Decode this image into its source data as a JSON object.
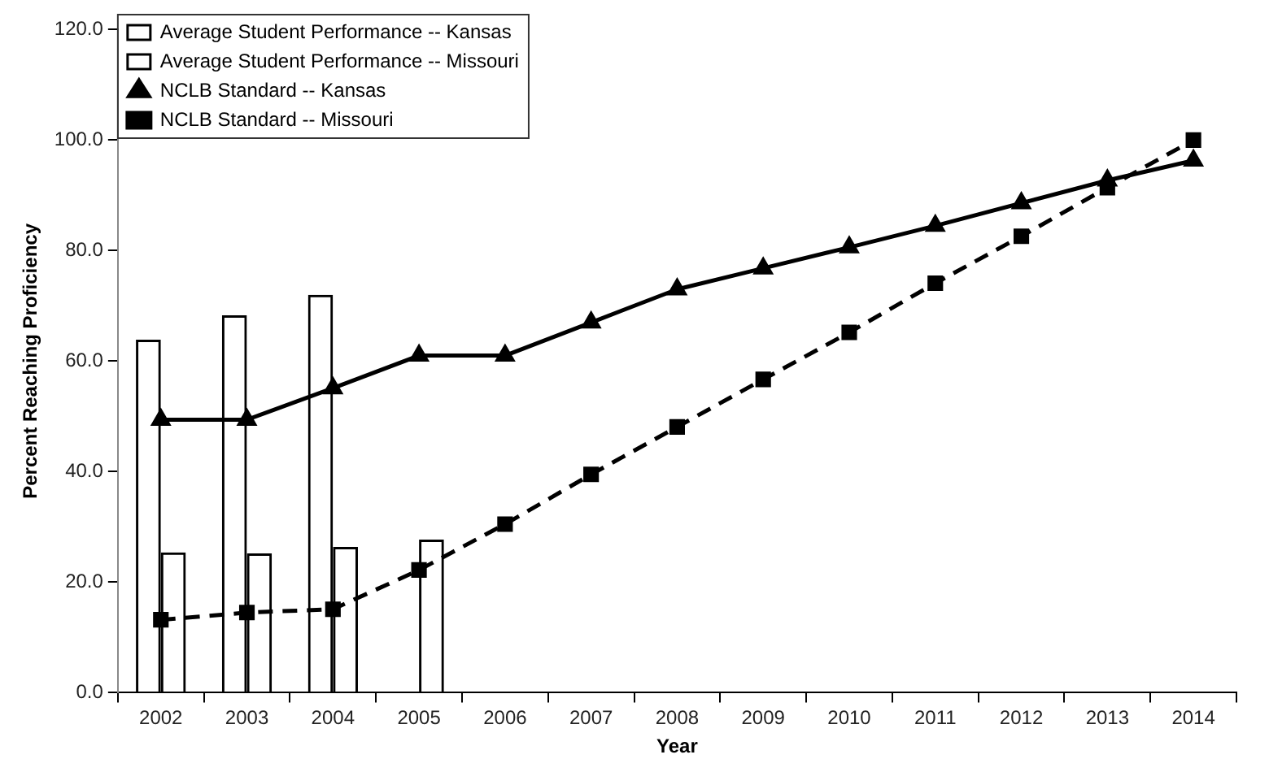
{
  "chart_data": {
    "type": "bar",
    "xlabel": "Year",
    "ylabel": "Percent Reaching Proficiency",
    "categories": [
      "2002",
      "2003",
      "2004",
      "2005",
      "2006",
      "2007",
      "2008",
      "2009",
      "2010",
      "2011",
      "2012",
      "2013",
      "2014"
    ],
    "series": [
      {
        "name": "Average Student Performance -- Kansas",
        "color": "#000000",
        "values": [
          63.9,
          68.3,
          72.0,
          null,
          null,
          null,
          null,
          null,
          null,
          null,
          null,
          null,
          null
        ]
      },
      {
        "name": "Average Student Performance -- Missouri",
        "color": "#000000",
        "values": [
          25.4,
          25.2,
          26.4,
          27.7,
          null,
          null,
          null,
          null,
          null,
          null,
          null,
          null,
          null
        ]
      },
      {
        "name": "NCLB Standard -- Kansas",
        "type": "line",
        "color": "#000000",
        "marker": "triangle",
        "line_style": "solid",
        "values": [
          49.4,
          49.4,
          55.1,
          61.0,
          61.0,
          67.0,
          73.0,
          76.8,
          80.6,
          84.5,
          88.6,
          92.7,
          96.3
        ]
      },
      {
        "name": "NCLB Standard -- Missouri",
        "type": "line",
        "color": "#000000",
        "marker": "square",
        "line_style": "dashed",
        "values": [
          13.2,
          14.5,
          15.1,
          22.2,
          30.5,
          39.5,
          48.1,
          56.7,
          65.2,
          74.1,
          82.6,
          91.4,
          100.0
        ]
      }
    ],
    "ylim": [
      0,
      120
    ],
    "yticks": [
      {
        "value": 0,
        "label": "0.0"
      },
      {
        "value": 20,
        "label": "20.0"
      },
      {
        "value": 40,
        "label": "40.0"
      },
      {
        "value": 60,
        "label": "60.0"
      },
      {
        "value": 80,
        "label": "80.0"
      },
      {
        "value": 100,
        "label": "100.0"
      },
      {
        "value": 120,
        "label": "120.0"
      }
    ],
    "grid": false,
    "legend": "top left"
  }
}
